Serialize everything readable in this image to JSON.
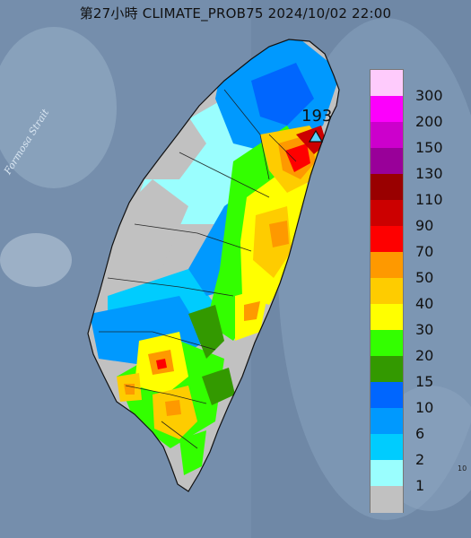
{
  "title": "第27小時  CLIMATE_PROB75 2024/10/02 22:00",
  "sea_label": "Formosa Strait",
  "station": {
    "value": "193",
    "marker": "triangle-station-icon"
  },
  "corner_text": "10",
  "legend": {
    "levels": [
      {
        "label": "300",
        "color": "#fecbfc"
      },
      {
        "label": "200",
        "color": "#fc00fc"
      },
      {
        "label": "150",
        "color": "#cc00cc"
      },
      {
        "label": "130",
        "color": "#990099"
      },
      {
        "label": "110",
        "color": "#990000"
      },
      {
        "label": "90",
        "color": "#cc0000"
      },
      {
        "label": "70",
        "color": "#fe0000"
      },
      {
        "label": "50",
        "color": "#fe9900"
      },
      {
        "label": "40",
        "color": "#fecc00"
      },
      {
        "label": "30",
        "color": "#ffff00"
      },
      {
        "label": "20",
        "color": "#33ff00"
      },
      {
        "label": "15",
        "color": "#339900"
      },
      {
        "label": "10",
        "color": "#0066fe"
      },
      {
        "label": "6",
        "color": "#0099fe"
      },
      {
        "label": "2",
        "color": "#00ccfe"
      },
      {
        "label": "1",
        "color": "#9afefe"
      },
      {
        "label": "",
        "color": "#c1c1c1"
      }
    ]
  }
}
